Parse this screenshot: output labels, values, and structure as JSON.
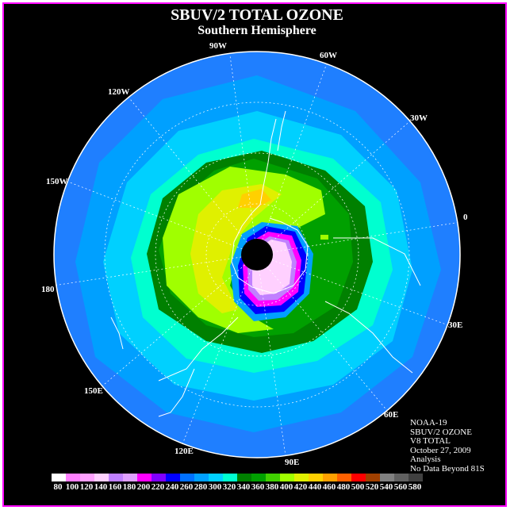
{
  "title": "SBUV/2 TOTAL OZONE",
  "subtitle": "Southern Hemisphere",
  "longitude_labels": [
    "90W",
    "60W",
    "30W",
    "0",
    "30E",
    "60E",
    "90E",
    "120E",
    "150E",
    "180",
    "150W",
    "120W"
  ],
  "info": {
    "satellite": "NOAA-19",
    "product": "SBUV/2 OZONE",
    "version": "V8 TOTAL",
    "date": "October 27, 2009",
    "type": "Analysis",
    "note": "No Data Beyond 81S"
  },
  "colors": {
    "frame_border": "#ff00ff",
    "background": "#000000",
    "polar_night": "#000000"
  },
  "legend": {
    "ticks": [
      "80",
      "100",
      "120",
      "140",
      "160",
      "180",
      "200",
      "220",
      "240",
      "260",
      "280",
      "300",
      "320",
      "340",
      "360",
      "380",
      "400",
      "420",
      "440",
      "460",
      "480",
      "500",
      "520",
      "540",
      "560",
      "580"
    ],
    "colors": [
      "#ffffff",
      "#ff80ff",
      "#ffa0ff",
      "#ffd0ff",
      "#c080ff",
      "#e0a0ff",
      "#ff00ff",
      "#8000ff",
      "#0000ff",
      "#0070ff",
      "#00a0ff",
      "#00d0ff",
      "#00ffd0",
      "#008000",
      "#00a000",
      "#40d000",
      "#a0ff00",
      "#e0f000",
      "#ffd000",
      "#ffa000",
      "#ff6000",
      "#ff0000",
      "#a04000",
      "#808080",
      "#606060",
      "#404040"
    ]
  }
}
